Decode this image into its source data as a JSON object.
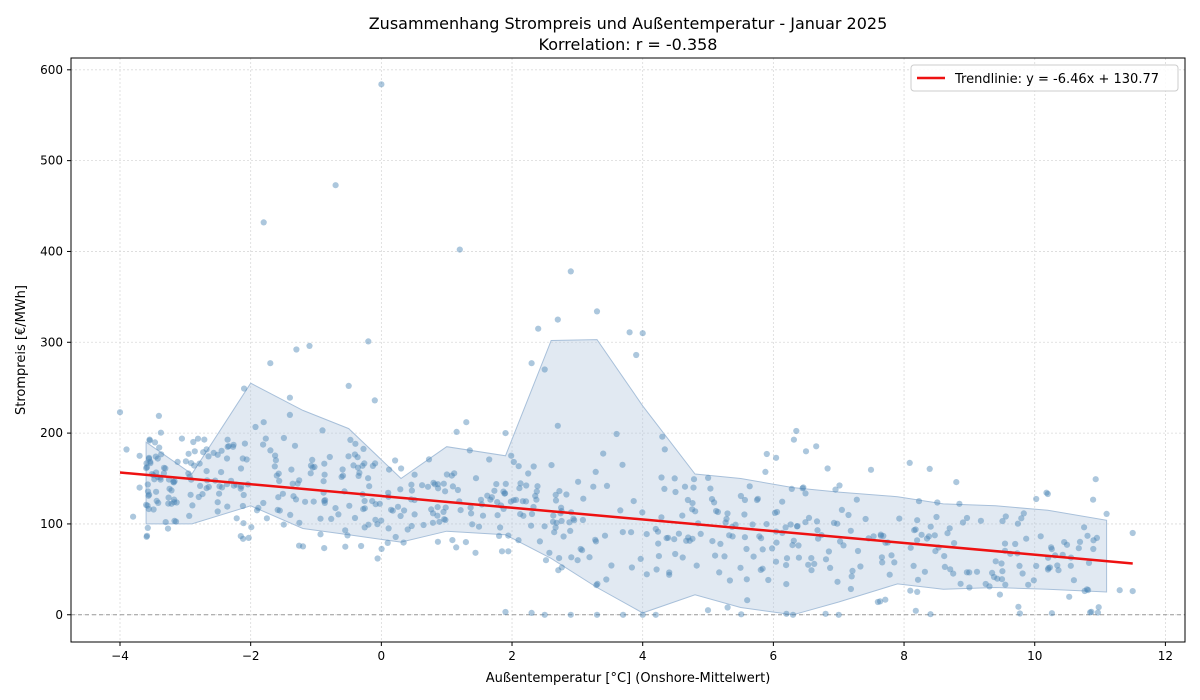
{
  "chart_data": {
    "type": "scatter",
    "title": "Zusammenhang Strompreis und Außentemperatur - Januar 2025",
    "subtitle": "Korrelation: r = -0.358",
    "xlabel": "Außentemperatur [°C] (Onshore-Mittelwert)",
    "ylabel": "Strompreis [€/MWh]",
    "xlim": [
      -4.75,
      12.3
    ],
    "ylim": [
      -30,
      613
    ],
    "xticks": [
      -4,
      -2,
      0,
      2,
      4,
      6,
      8,
      10,
      12
    ],
    "yticks": [
      0,
      100,
      200,
      300,
      400,
      500,
      600
    ],
    "grid": true,
    "legend_position": "top-right",
    "colors": {
      "points": "#4682b4",
      "band": "#b0c4de",
      "trend": "#ee1111",
      "reference": "#999999"
    },
    "reference_line": {
      "y": 0
    },
    "trend": {
      "label": "Trendlinie: y = -6.46x + 130.77",
      "slope": -6.46,
      "intercept": 130.77,
      "x_range": [
        -4.0,
        11.5
      ]
    },
    "band": {
      "x": [
        -3.6,
        -2.9,
        -2.0,
        -1.2,
        -0.5,
        0.3,
        1.0,
        1.9,
        2.6,
        3.3,
        4.0,
        4.8,
        5.5,
        6.3,
        7.0,
        7.9,
        8.6,
        9.4,
        10.2,
        11.1
      ],
      "lower": [
        100,
        100,
        120,
        95,
        88,
        80,
        92,
        88,
        62,
        30,
        2,
        22,
        8,
        0,
        14,
        34,
        28,
        30,
        28,
        25
      ],
      "upper": [
        190,
        155,
        255,
        225,
        205,
        150,
        185,
        175,
        302,
        303,
        230,
        155,
        150,
        140,
        135,
        130,
        122,
        120,
        115,
        104
      ]
    },
    "outliers": [
      {
        "x": 0.0,
        "y": 584
      },
      {
        "x": -0.7,
        "y": 473
      },
      {
        "x": -1.8,
        "y": 432
      },
      {
        "x": 1.2,
        "y": 402
      },
      {
        "x": 2.9,
        "y": 378
      },
      {
        "x": 3.3,
        "y": 334
      },
      {
        "x": 2.7,
        "y": 325
      },
      {
        "x": 2.4,
        "y": 315
      },
      {
        "x": 3.8,
        "y": 311
      },
      {
        "x": 4.0,
        "y": 310
      },
      {
        "x": -1.3,
        "y": 292
      },
      {
        "x": -1.1,
        "y": 296
      },
      {
        "x": -0.2,
        "y": 301
      },
      {
        "x": 3.9,
        "y": 286
      },
      {
        "x": -1.7,
        "y": 277
      },
      {
        "x": 2.3,
        "y": 277
      },
      {
        "x": 2.5,
        "y": 270
      },
      {
        "x": -0.5,
        "y": 252
      },
      {
        "x": -2.1,
        "y": 249
      },
      {
        "x": -0.1,
        "y": 236
      },
      {
        "x": -1.4,
        "y": 239
      },
      {
        "x": -4.0,
        "y": 223
      },
      {
        "x": -1.4,
        "y": 220
      },
      {
        "x": 1.3,
        "y": 212
      },
      {
        "x": -1.8,
        "y": 212
      },
      {
        "x": 2.7,
        "y": 208
      },
      {
        "x": -0.9,
        "y": 203
      },
      {
        "x": 1.9,
        "y": 200
      },
      {
        "x": 3.6,
        "y": 199
      },
      {
        "x": 4.3,
        "y": 196
      },
      {
        "x": 6.5,
        "y": 180
      },
      {
        "x": 5.9,
        "y": 177
      },
      {
        "x": 8.8,
        "y": 146
      },
      {
        "x": 10.2,
        "y": 133
      },
      {
        "x": 11.1,
        "y": 111
      },
      {
        "x": 11.5,
        "y": 90
      },
      {
        "x": 10.9,
        "y": 82
      },
      {
        "x": 10.6,
        "y": 38
      },
      {
        "x": 11.3,
        "y": 27
      },
      {
        "x": 11.5,
        "y": 26
      },
      {
        "x": 10.8,
        "y": 28
      },
      {
        "x": 9.9,
        "y": 33
      },
      {
        "x": 9.0,
        "y": 30
      },
      {
        "x": 1.9,
        "y": 3
      },
      {
        "x": 2.3,
        "y": 2
      },
      {
        "x": 2.5,
        "y": 0
      },
      {
        "x": 2.9,
        "y": 0
      },
      {
        "x": 3.3,
        "y": 0
      },
      {
        "x": 3.7,
        "y": 0
      },
      {
        "x": 4.0,
        "y": 0
      },
      {
        "x": 4.2,
        "y": 0
      },
      {
        "x": 6.2,
        "y": 1
      },
      {
        "x": 6.3,
        "y": 0
      },
      {
        "x": 6.8,
        "y": 1
      },
      {
        "x": 7.0,
        "y": 0
      },
      {
        "x": 7.6,
        "y": 14
      },
      {
        "x": 5.6,
        "y": 16
      },
      {
        "x": 5.0,
        "y": 5
      },
      {
        "x": 5.3,
        "y": 8
      },
      {
        "x": -3.7,
        "y": 140
      },
      {
        "x": -3.6,
        "y": 121
      },
      {
        "x": -3.8,
        "y": 108
      },
      {
        "x": -3.3,
        "y": 102
      },
      {
        "x": -3.9,
        "y": 182
      },
      {
        "x": -3.4,
        "y": 184
      },
      {
        "x": -3.7,
        "y": 175
      }
    ],
    "cloud": {
      "n": 620,
      "seed": 7,
      "x_range": [
        -3.6,
        11.0
      ],
      "note": "dense body of points around the trend"
    }
  }
}
